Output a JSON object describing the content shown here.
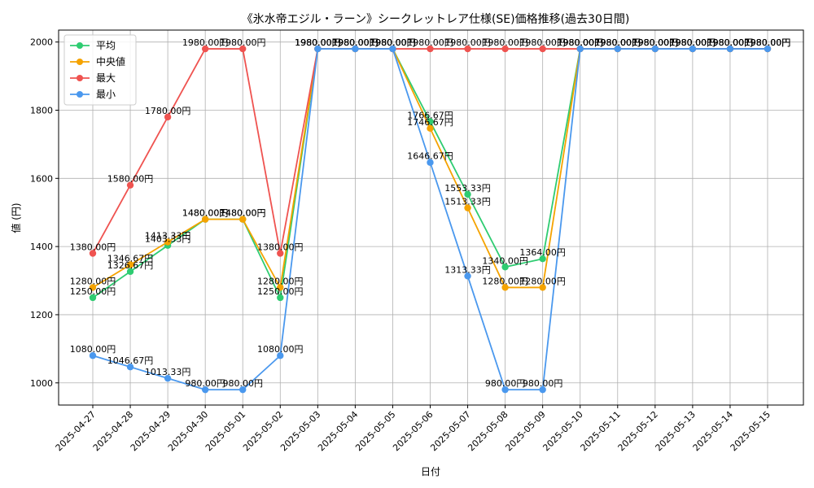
{
  "chart_data": {
    "type": "line",
    "title": "《氷水帝エジル・ラーン》シークレットレア仕様(SE)価格推移(過去30日間)",
    "xlabel": "日付",
    "ylabel": "値 (円)",
    "ylim": [
      935,
      2035
    ],
    "yticks": [
      1000,
      1200,
      1400,
      1600,
      1800,
      2000
    ],
    "grid": true,
    "legend_position": "top-left",
    "label_suffix": "円",
    "categories": [
      "2025-04-27",
      "2025-04-28",
      "2025-04-29",
      "2025-04-30",
      "2025-05-01",
      "2025-05-02",
      "2025-05-03",
      "2025-05-04",
      "2025-05-05",
      "2025-05-06",
      "2025-05-07",
      "2025-05-08",
      "2025-05-09",
      "2025-05-10",
      "2025-05-11",
      "2025-05-12",
      "2025-05-13",
      "2025-05-14",
      "2025-05-15"
    ],
    "series": [
      {
        "name": "平均",
        "color": "#2ecc71",
        "values": [
          1250.0,
          1326.67,
          1403.33,
          1480.0,
          1480.0,
          1250.0,
          1980.0,
          1980.0,
          1980.0,
          1766.67,
          1553.33,
          1340.0,
          1364.0,
          1980.0,
          1980.0,
          1980.0,
          1980.0,
          1980.0,
          1980.0
        ]
      },
      {
        "name": "中央値",
        "color": "#f5a300",
        "values": [
          1280.0,
          1346.67,
          1413.33,
          1480.0,
          1480.0,
          1280.0,
          1980.0,
          1980.0,
          1980.0,
          1746.67,
          1513.33,
          1280.0,
          1280.0,
          1980.0,
          1980.0,
          1980.0,
          1980.0,
          1980.0,
          1980.0
        ]
      },
      {
        "name": "最大",
        "color": "#ef5350",
        "values": [
          1380.0,
          1580.0,
          1780.0,
          1980.0,
          1980.0,
          1380.0,
          1980.0,
          1980.0,
          1980.0,
          1980.0,
          1980.0,
          1980.0,
          1980.0,
          1980.0,
          1980.0,
          1980.0,
          1980.0,
          1980.0,
          1980.0
        ]
      },
      {
        "name": "最小",
        "color": "#4a98ee",
        "values": [
          1080.0,
          1046.67,
          1013.33,
          980.0,
          980.0,
          1080.0,
          1980.0,
          1980.0,
          1980.0,
          1646.67,
          1313.33,
          980.0,
          980.0,
          1980.0,
          1980.0,
          1980.0,
          1980.0,
          1980.0,
          1980.0
        ]
      }
    ]
  }
}
